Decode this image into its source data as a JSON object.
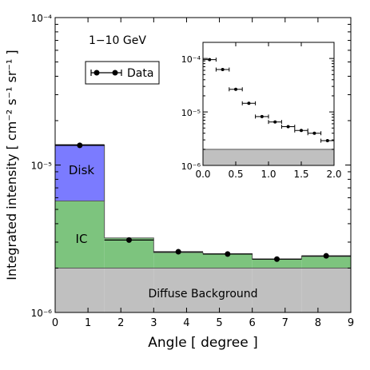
{
  "chart_data": [
    {
      "type": "bar",
      "title": "1−10 GeV",
      "xlabel": "Angle [ degree ]",
      "ylabel": "Integrated intensity [ cm⁻² s⁻¹ sr⁻¹ ]",
      "xlim": [
        0,
        9
      ],
      "ylim": [
        1e-06,
        0.0001
      ],
      "y_scale": "log",
      "x_ticks": [
        "0",
        "1",
        "2",
        "3",
        "4",
        "5",
        "6",
        "7",
        "8",
        "9"
      ],
      "y_ticks": [
        "10⁻⁶",
        "10⁻⁵",
        "10⁻⁴"
      ],
      "bins": [
        [
          0,
          1.5
        ],
        [
          1.5,
          3
        ],
        [
          3,
          4.5
        ],
        [
          4.5,
          6
        ],
        [
          6,
          7.5
        ],
        [
          7.5,
          9
        ]
      ],
      "stack": [
        {
          "name": "Diffuse Background",
          "color": "#c0c0c0",
          "values": [
            2e-06,
            2e-06,
            2e-06,
            2e-06,
            2e-06,
            2e-06
          ]
        },
        {
          "name": "IC",
          "color": "#7dc47e",
          "values": [
            3.7e-06,
            1.2e-06,
            5.5e-07,
            5e-07,
            3e-07,
            4e-07
          ]
        },
        {
          "name": "Disk",
          "color": "#7b7bff",
          "values": [
            8e-06,
            0,
            0,
            0,
            0,
            0
          ]
        }
      ],
      "series": [
        {
          "name": "Data",
          "x": [
            0.75,
            2.25,
            3.75,
            5.25,
            6.75,
            8.25
          ],
          "y": [
            1.36e-05,
            3.1e-06,
            2.58e-06,
            2.49e-06,
            2.3e-06,
            2.42e-06
          ],
          "x_err": [
            0.75,
            0.75,
            0.75,
            0.75,
            0.75,
            0.75
          ]
        }
      ],
      "legend": {
        "placement": "top-left",
        "entries": [
          "Data"
        ]
      },
      "grid": false
    },
    {
      "type": "scatter",
      "xlim": [
        0,
        2.0
      ],
      "ylim": [
        1e-06,
        0.0002
      ],
      "y_scale": "log",
      "x_ticks": [
        "0.0",
        "0.5",
        "1.0",
        "1.5",
        "2.0"
      ],
      "y_ticks": [
        "10⁻⁶",
        "10⁻⁵",
        "10⁻⁴"
      ],
      "background_band": {
        "color": "#c0c0c0",
        "value": 2e-06
      },
      "series": [
        {
          "x": [
            0.1,
            0.3,
            0.5,
            0.7,
            0.9,
            1.1,
            1.3,
            1.5,
            1.7,
            1.9
          ],
          "y": [
            9.5e-05,
            6.2e-05,
            2.65e-05,
            1.45e-05,
            8.2e-06,
            6.5e-06,
            5.3e-06,
            4.5e-06,
            4e-06,
            2.9e-06
          ],
          "x_err": [
            0.1,
            0.1,
            0.1,
            0.1,
            0.1,
            0.1,
            0.1,
            0.1,
            0.1,
            0.1
          ]
        }
      ],
      "grid": false
    }
  ],
  "labels": {
    "disk": "Disk",
    "ic": "IC",
    "background": "Diffuse Background"
  }
}
